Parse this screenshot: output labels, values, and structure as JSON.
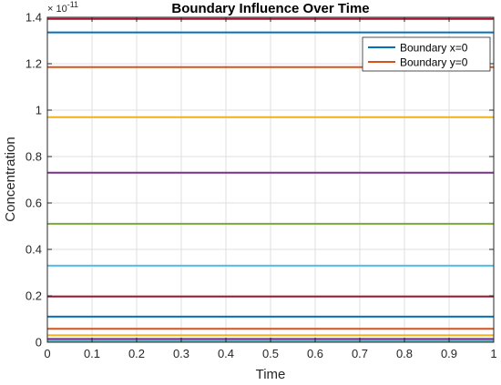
{
  "chart_data": {
    "type": "line",
    "title": "Boundary Influence Over Time",
    "xlabel": "Time",
    "ylabel": "Concentration",
    "y_exponent_base": "× 10",
    "y_exponent_power": "-11",
    "xlim": [
      0,
      1
    ],
    "ylim": [
      0,
      1.4
    ],
    "x_ticks": [
      0,
      0.1,
      0.2,
      0.3,
      0.4,
      0.5,
      0.6,
      0.7,
      0.8,
      0.9,
      1
    ],
    "x_tick_labels": [
      "0",
      "0.1",
      "0.2",
      "0.3",
      "0.4",
      "0.5",
      "0.6",
      "0.7",
      "0.8",
      "0.9",
      "1"
    ],
    "y_ticks": [
      0,
      0.2,
      0.4,
      0.6,
      0.8,
      1,
      1.2,
      1.4
    ],
    "y_tick_labels": [
      "0",
      "0.2",
      "0.4",
      "0.6",
      "0.8",
      "1",
      "1.2",
      "1.4"
    ],
    "grid": true,
    "legend_position": "top-right",
    "x": [
      0,
      1
    ],
    "series": [
      {
        "name": "Boundary x=0",
        "color": "#0072BD",
        "values": [
          1.335,
          1.335
        ]
      },
      {
        "name": "Boundary y=0",
        "color": "#D95319",
        "values": [
          1.185,
          1.185
        ]
      },
      {
        "color": "#EDB120",
        "values": [
          0.97,
          0.97
        ]
      },
      {
        "color": "#7E2F8E",
        "values": [
          0.73,
          0.73
        ]
      },
      {
        "color": "#77AC30",
        "values": [
          0.51,
          0.51
        ]
      },
      {
        "color": "#4DBEEE",
        "values": [
          0.33,
          0.33
        ]
      },
      {
        "color": "#A2142F",
        "values": [
          0.197,
          0.197
        ]
      },
      {
        "color": "#0072BD",
        "values": [
          0.11,
          0.11
        ]
      },
      {
        "color": "#D95319",
        "values": [
          0.058,
          0.058
        ]
      },
      {
        "color": "#EDB120",
        "values": [
          0.03,
          0.03
        ]
      },
      {
        "color": "#7E2F8E",
        "values": [
          0.014,
          0.014
        ]
      },
      {
        "color": "#77AC30",
        "values": [
          0.007,
          0.007
        ]
      },
      {
        "color": "#4DBEEE",
        "values": [
          0.003,
          0.003
        ]
      },
      {
        "color": "#A2142F",
        "values": [
          1.393,
          1.393
        ]
      }
    ]
  }
}
